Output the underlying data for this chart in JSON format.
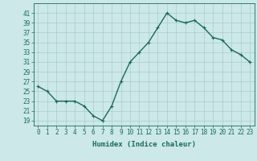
{
  "x": [
    0,
    1,
    2,
    3,
    4,
    5,
    6,
    7,
    8,
    9,
    10,
    11,
    12,
    13,
    14,
    15,
    16,
    17,
    18,
    19,
    20,
    21,
    22,
    23
  ],
  "y": [
    26,
    25,
    23,
    23,
    23,
    22,
    20,
    19,
    22,
    27,
    31,
    33,
    35,
    38,
    41,
    39.5,
    39,
    39.5,
    38,
    36,
    35.5,
    33.5,
    32.5,
    31
  ],
  "line_color": "#1a6b5a",
  "marker_color": "#1a6b5a",
  "bg_color": "#cce8e8",
  "grid_color": "#aacccc",
  "xlabel": "Humidex (Indice chaleur)",
  "ylim": [
    18,
    43
  ],
  "xlim": [
    -0.5,
    23.5
  ],
  "yticks": [
    19,
    21,
    23,
    25,
    27,
    29,
    31,
    33,
    35,
    37,
    39,
    41
  ],
  "xticks": [
    0,
    1,
    2,
    3,
    4,
    5,
    6,
    7,
    8,
    9,
    10,
    11,
    12,
    13,
    14,
    15,
    16,
    17,
    18,
    19,
    20,
    21,
    22,
    23
  ],
  "xlabel_fontsize": 6.5,
  "tick_fontsize": 5.5,
  "line_width": 1.0,
  "marker_size": 3.5
}
